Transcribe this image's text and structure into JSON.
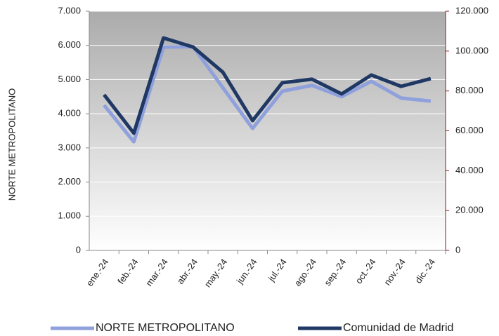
{
  "chart_data": {
    "type": "line",
    "categories": [
      "ene.-24",
      "feb.-24",
      "mar.-24",
      "abr.-24",
      "may.-24",
      "jun.-24",
      "jul.-24",
      "ago.-24",
      "sep.-24",
      "oct.-24",
      "nov.-24",
      "dic.-24"
    ],
    "series": [
      {
        "name": "NORTE METROPOLITANO",
        "color": "#8fa0dc",
        "values": [
          4250,
          3180,
          5950,
          5960,
          4760,
          3570,
          4660,
          4830,
          4500,
          4950,
          4460,
          4370
        ]
      },
      {
        "name": "Comunidad de Madrid",
        "color": "#1f3864",
        "axis": "y2",
        "values": [
          78100,
          58800,
          106600,
          102000,
          89400,
          65100,
          84100,
          85900,
          78500,
          88000,
          82300,
          86200
        ]
      }
    ],
    "ylabel": "NORTE METROPOLITANO",
    "ylim": [
      0,
      7000
    ],
    "yticks": [
      0,
      {
        "value": 1000,
        "label": "1.000"
      },
      {
        "value": 2000,
        "label": "2.000"
      },
      {
        "value": 3000,
        "label": "3.000"
      },
      {
        "value": 4000,
        "label": "4.000"
      },
      {
        "value": 5000,
        "label": "5.000"
      },
      {
        "value": 6000,
        "label": "6.000"
      },
      {
        "value": 7000,
        "label": "7.000"
      }
    ],
    "y2lim": [
      0,
      120000
    ],
    "y2ticks": [
      0,
      {
        "value": 20000,
        "label": "20.000"
      },
      {
        "value": 40000,
        "label": "40.000"
      },
      {
        "value": 60000,
        "label": "60.000"
      },
      {
        "value": 80000,
        "label": "80.000"
      },
      {
        "value": 100000,
        "label": "100.000"
      },
      {
        "value": 120000,
        "label": "120.000"
      }
    ],
    "grid": true,
    "legend": "bottom"
  }
}
